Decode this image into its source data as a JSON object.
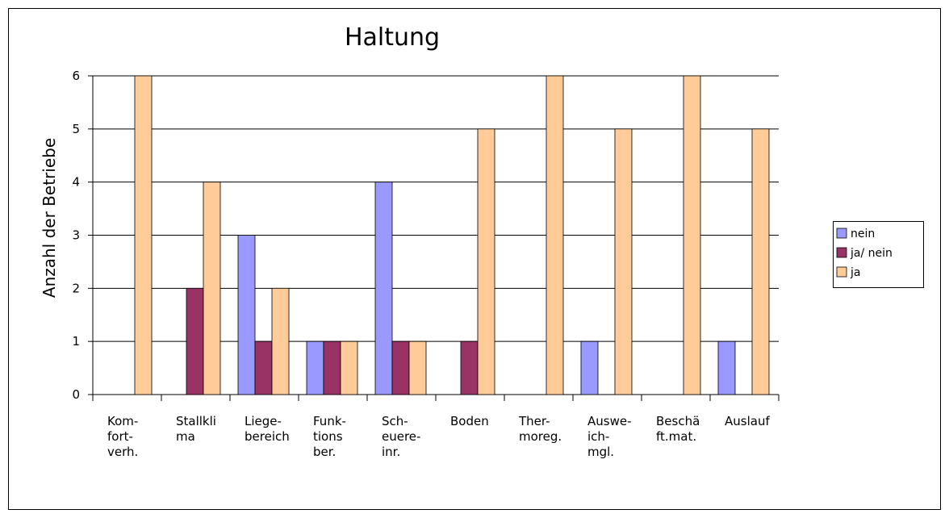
{
  "chart_data": {
    "type": "bar",
    "title": "Haltung",
    "y_label": "Anzahl der Betriebe",
    "categories": [
      "Kom-\nfort-\nverh.",
      "Stallkli\nma",
      "Liege-\nbereich",
      "Funk-\ntions\nber.",
      "Sch-\neuere-\ninr.",
      "Boden",
      "Ther-\nmoreg.",
      "Auswe-\nich-\nmgl.",
      "Beschä\nft.mat.",
      "Auslauf"
    ],
    "series": [
      {
        "name": "nein",
        "color": "#9999ff",
        "values": [
          0,
          0,
          3,
          1,
          4,
          0,
          0,
          1,
          0,
          1
        ]
      },
      {
        "name": "ja/ nein",
        "color": "#993366",
        "values": [
          0,
          2,
          1,
          1,
          1,
          1,
          0,
          0,
          0,
          0
        ]
      },
      {
        "name": "ja",
        "color": "#ffcc99",
        "values": [
          6,
          4,
          2,
          1,
          1,
          5,
          6,
          5,
          6,
          5
        ]
      }
    ],
    "ylim": [
      0,
      6
    ],
    "yticks": [
      0,
      1,
      2,
      3,
      4,
      5,
      6
    ],
    "grid": true,
    "legend": "right"
  }
}
